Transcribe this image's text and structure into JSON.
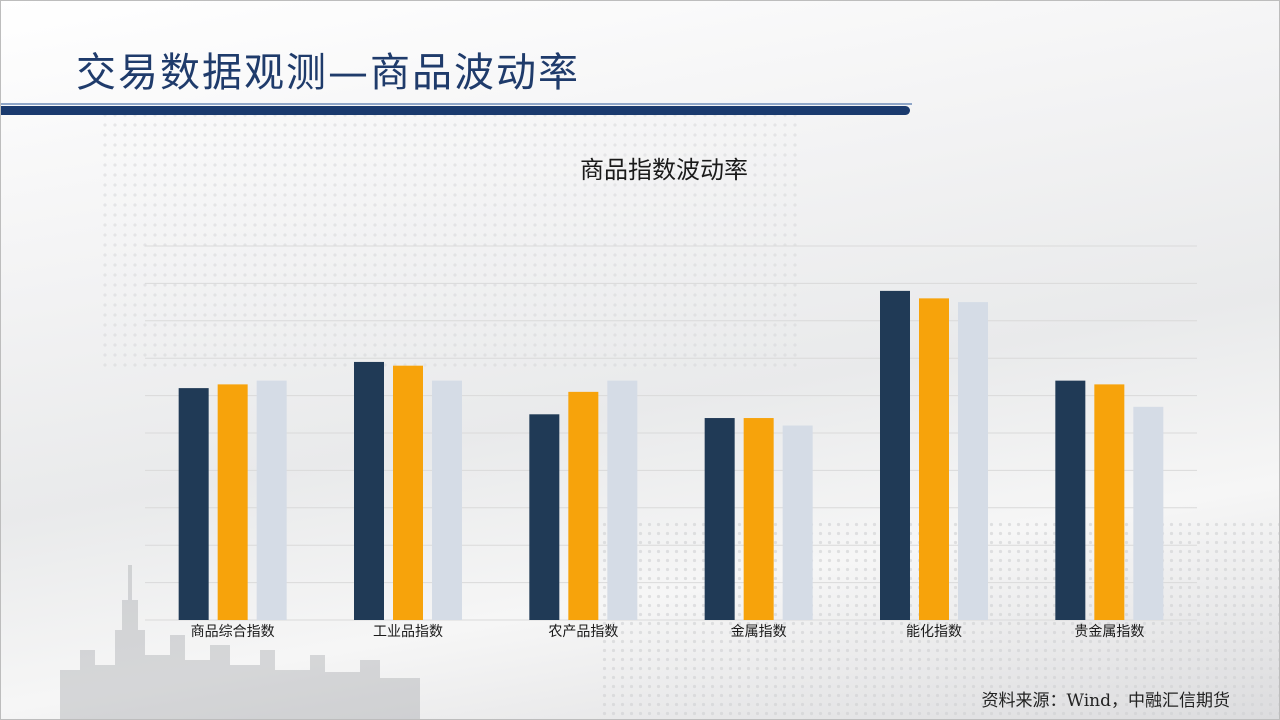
{
  "header": {
    "title": "交易数据观测—商品波动率"
  },
  "source": "资料来源：Wind，中融汇信期货",
  "colors": {
    "series1": "#203a56",
    "series2": "#f7a30b",
    "series3": "#d5dce6",
    "grid": "#dadada",
    "title_bar": "#1a3a6e"
  },
  "chart_data": {
    "type": "bar",
    "title": "商品指数波动率",
    "xlabel": "",
    "ylabel": "",
    "categories": [
      "商品综合指数",
      "工业品指数",
      "农产品指数",
      "金属指数",
      "能化指数",
      "贵金属指数"
    ],
    "series": [
      {
        "values": [
          6.2,
          6.9,
          5.5,
          5.4,
          8.8,
          6.4
        ]
      },
      {
        "values": [
          6.3,
          6.8,
          6.1,
          5.4,
          8.6,
          6.3
        ]
      },
      {
        "values": [
          6.4,
          6.4,
          6.4,
          5.2,
          8.5,
          5.7
        ]
      }
    ],
    "ylim": [
      0,
      10
    ],
    "grid": true,
    "legend": "none"
  }
}
